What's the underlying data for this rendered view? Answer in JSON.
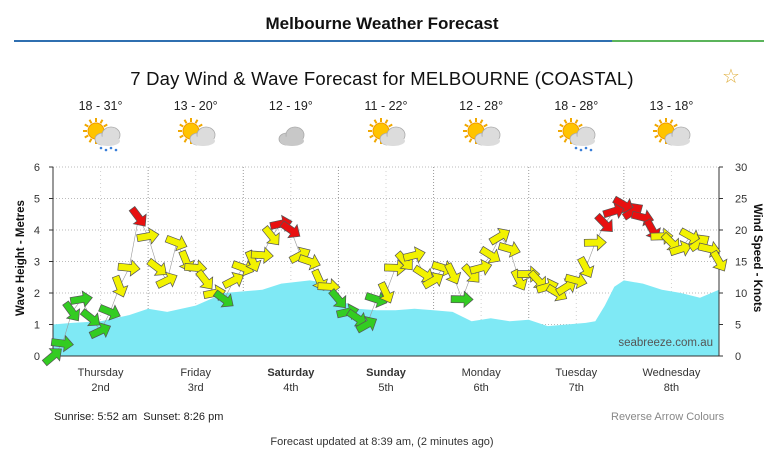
{
  "page": {
    "title": "Melbourne Weather Forecast",
    "chart_title": "7 Day Wind & Wave Forecast for MELBOURNE (COASTAL)",
    "sunrise_sunset": "Sunrise: 5:52 am  Sunset: 8:26 pm",
    "reverse_link": "Reverse Arrow Colours",
    "updated": "Forecast updated at 8:39 am, (2 minutes ago)",
    "watermark": "seabreeze.com.au"
  },
  "days": [
    {
      "temp": "18 - 31°",
      "icon": "sun-cloud-rain-icon",
      "name": "Thursday",
      "date": "2nd",
      "bold": false
    },
    {
      "temp": "13 - 20°",
      "icon": "sun-cloud-icon",
      "name": "Friday",
      "date": "3rd",
      "bold": false
    },
    {
      "temp": "12 - 19°",
      "icon": "cloud-icon",
      "name": "Saturday",
      "date": "4th",
      "bold": true
    },
    {
      "temp": "11 - 22°",
      "icon": "sun-cloud-icon",
      "name": "Sunday",
      "date": "5th",
      "bold": true
    },
    {
      "temp": "12 - 28°",
      "icon": "sun-cloud-icon",
      "name": "Monday",
      "date": "6th",
      "bold": false
    },
    {
      "temp": "18 - 28°",
      "icon": "sun-cloud-rain-icon",
      "name": "Tuesday",
      "date": "7th",
      "bold": false
    },
    {
      "temp": "13 - 18°",
      "icon": "sun-cloud-icon",
      "name": "Wednesday",
      "date": "8th",
      "bold": false
    }
  ],
  "colors": {
    "wave_fill": "#7fe9f5",
    "wind_low": "#33cc22",
    "wind_mid": "#f2f200",
    "wind_high": "#e81010",
    "arrow_stroke": "#555555"
  },
  "chart_data": {
    "type": "area",
    "xlabel": "",
    "ylabel_left": "Wave Height - Metres",
    "ylabel_right": "Wind Speed - Knots",
    "ylim_left": [
      0,
      6
    ],
    "ylim_right": [
      0,
      30
    ],
    "yticks_left": [
      "0",
      "1",
      "2",
      "3",
      "4",
      "5",
      "6"
    ],
    "yticks_right": [
      "0",
      "5",
      "10",
      "15",
      "20",
      "25",
      "30"
    ],
    "x_unit": "days from Thursday 2nd 00:00",
    "xlim": [
      0,
      7
    ],
    "grid": true,
    "wave_height": {
      "name": "Wave Height",
      "x": [
        0,
        0.2,
        0.5,
        0.8,
        1.0,
        1.2,
        1.5,
        1.8,
        2.0,
        2.2,
        2.4,
        2.7,
        2.9,
        3.0,
        3.2,
        3.4,
        3.6,
        3.8,
        4.0,
        4.2,
        4.4,
        4.6,
        4.8,
        5.0,
        5.2,
        5.4,
        5.6,
        5.7,
        5.8,
        5.9,
        6.0,
        6.2,
        6.4,
        6.6,
        6.8,
        7.0
      ],
      "values": [
        1.0,
        1.05,
        1.1,
        1.3,
        1.5,
        1.4,
        1.6,
        2.0,
        2.05,
        2.1,
        2.3,
        2.4,
        2.3,
        1.8,
        1.5,
        1.45,
        1.45,
        1.5,
        1.45,
        1.4,
        1.1,
        1.2,
        1.1,
        1.15,
        0.95,
        1.0,
        1.05,
        1.1,
        1.6,
        2.2,
        2.4,
        2.3,
        2.1,
        2.0,
        1.85,
        2.1
      ]
    },
    "wind": {
      "name": "Wind Speed",
      "x": [
        0.0,
        0.1,
        0.2,
        0.3,
        0.4,
        0.5,
        0.6,
        0.7,
        0.8,
        0.9,
        1.0,
        1.1,
        1.2,
        1.3,
        1.4,
        1.5,
        1.6,
        1.7,
        1.8,
        1.9,
        2.0,
        2.1,
        2.2,
        2.3,
        2.4,
        2.5,
        2.6,
        2.7,
        2.8,
        2.9,
        3.0,
        3.1,
        3.2,
        3.3,
        3.4,
        3.5,
        3.6,
        3.7,
        3.8,
        3.9,
        4.0,
        4.1,
        4.2,
        4.3,
        4.4,
        4.5,
        4.6,
        4.7,
        4.8,
        4.9,
        5.0,
        5.1,
        5.2,
        5.3,
        5.4,
        5.5,
        5.6,
        5.7,
        5.8,
        5.9,
        6.0,
        6.1,
        6.2,
        6.3,
        6.4,
        6.5,
        6.6,
        6.7,
        6.8,
        6.9,
        7.0
      ],
      "values": [
        0,
        2,
        7,
        9,
        6,
        4,
        7,
        11,
        14,
        22,
        19,
        14,
        12,
        18,
        15,
        14,
        12,
        10,
        9,
        12,
        14,
        15,
        16,
        19,
        21,
        20,
        16,
        15,
        12,
        11,
        9,
        7,
        6,
        5,
        9,
        10,
        14,
        15,
        16,
        13,
        12,
        14,
        13,
        9,
        13,
        14,
        16,
        19,
        17,
        12,
        13,
        12,
        11,
        10,
        11,
        12,
        14,
        18,
        21,
        23,
        24,
        23,
        22,
        20,
        19,
        18,
        17,
        19,
        18,
        17,
        15
      ]
    }
  }
}
